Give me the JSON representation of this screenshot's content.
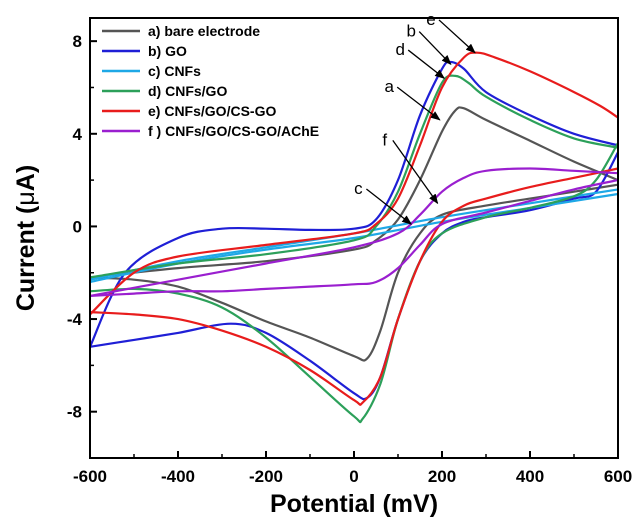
{
  "chart_data": {
    "type": "line",
    "xlabel": "Potential (mV)",
    "ylabel_prefix": "Current (",
    "ylabel_mu": "μ",
    "ylabel_suffix": "A)",
    "xlim": [
      -600,
      600
    ],
    "ylim": [
      -10,
      9
    ],
    "xticks": [
      -600,
      -400,
      -200,
      0,
      200,
      400,
      600
    ],
    "yticks": [
      -8,
      -4,
      0,
      4,
      8
    ],
    "grid": false,
    "legend_position": "top-left",
    "series": [
      {
        "name": "a) bare electrode",
        "label": "a",
        "color": "#555555",
        "forward": [
          [
            -600,
            -2.2
          ],
          [
            -400,
            -1.8
          ],
          [
            -200,
            -1.5
          ],
          [
            0,
            -1.0
          ],
          [
            50,
            -0.6
          ],
          [
            100,
            0.3
          ],
          [
            150,
            2.0
          ],
          [
            200,
            4.1
          ],
          [
            230,
            5.0
          ],
          [
            250,
            5.1
          ],
          [
            300,
            4.6
          ],
          [
            400,
            3.7
          ],
          [
            500,
            2.8
          ],
          [
            600,
            2.0
          ]
        ],
        "reverse": [
          [
            600,
            1.8
          ],
          [
            500,
            1.5
          ],
          [
            400,
            1.2
          ],
          [
            300,
            0.9
          ],
          [
            200,
            0.5
          ],
          [
            150,
            -0.3
          ],
          [
            100,
            -2.0
          ],
          [
            60,
            -4.5
          ],
          [
            30,
            -5.7
          ],
          [
            0,
            -5.6
          ],
          [
            -100,
            -4.8
          ],
          [
            -200,
            -4.1
          ],
          [
            -300,
            -3.3
          ],
          [
            -400,
            -2.6
          ],
          [
            -500,
            -2.3
          ],
          [
            -600,
            -2.2
          ]
        ]
      },
      {
        "name": "b) GO",
        "label": "b",
        "color": "#1f1fd6",
        "forward": [
          [
            -600,
            -5.2
          ],
          [
            -520,
            -2.0
          ],
          [
            -400,
            -0.5
          ],
          [
            -300,
            -0.1
          ],
          [
            -200,
            -0.1
          ],
          [
            -100,
            -0.15
          ],
          [
            0,
            -0.1
          ],
          [
            50,
            0.3
          ],
          [
            100,
            2.0
          ],
          [
            150,
            4.8
          ],
          [
            200,
            6.8
          ],
          [
            220,
            7.1
          ],
          [
            250,
            6.8
          ],
          [
            300,
            5.8
          ],
          [
            400,
            4.8
          ],
          [
            500,
            4.0
          ],
          [
            600,
            3.5
          ]
        ],
        "reverse": [
          [
            600,
            3.2
          ],
          [
            550,
            1.5
          ],
          [
            500,
            1.2
          ],
          [
            400,
            0.7
          ],
          [
            300,
            0.4
          ],
          [
            250,
            0.2
          ],
          [
            200,
            -0.3
          ],
          [
            150,
            -1.5
          ],
          [
            100,
            -4.0
          ],
          [
            60,
            -6.5
          ],
          [
            30,
            -7.4
          ],
          [
            0,
            -7.2
          ],
          [
            -100,
            -5.8
          ],
          [
            -200,
            -4.6
          ],
          [
            -280,
            -4.2
          ],
          [
            -400,
            -4.6
          ],
          [
            -500,
            -4.9
          ],
          [
            -600,
            -5.2
          ]
        ]
      },
      {
        "name": "c) CNFs",
        "label": "c",
        "color": "#1ea8e6",
        "forward": [
          [
            -600,
            -2.4
          ],
          [
            -400,
            -1.6
          ],
          [
            -200,
            -1.0
          ],
          [
            0,
            -0.5
          ],
          [
            200,
            0.2
          ],
          [
            400,
            0.8
          ],
          [
            600,
            1.4
          ]
        ],
        "reverse": [
          [
            600,
            1.6
          ],
          [
            400,
            1.0
          ],
          [
            200,
            0.4
          ],
          [
            0,
            -0.3
          ],
          [
            -200,
            -0.9
          ],
          [
            -400,
            -1.5
          ],
          [
            -600,
            -2.3
          ]
        ]
      },
      {
        "name": "d) CNFs/GO",
        "label": "d",
        "color": "#2ca05a",
        "forward": [
          [
            -600,
            -2.2
          ],
          [
            -400,
            -1.6
          ],
          [
            -200,
            -1.2
          ],
          [
            0,
            -0.6
          ],
          [
            50,
            0.0
          ],
          [
            100,
            1.5
          ],
          [
            150,
            4.0
          ],
          [
            200,
            6.2
          ],
          [
            230,
            6.5
          ],
          [
            260,
            6.2
          ],
          [
            300,
            5.6
          ],
          [
            400,
            4.6
          ],
          [
            500,
            3.8
          ],
          [
            600,
            3.4
          ]
        ],
        "reverse": [
          [
            600,
            3.6
          ],
          [
            550,
            2.0
          ],
          [
            500,
            1.3
          ],
          [
            400,
            0.8
          ],
          [
            300,
            0.4
          ],
          [
            200,
            -0.3
          ],
          [
            150,
            -1.5
          ],
          [
            100,
            -4.0
          ],
          [
            60,
            -6.8
          ],
          [
            20,
            -8.3
          ],
          [
            0,
            -8.2
          ],
          [
            -100,
            -6.5
          ],
          [
            -200,
            -4.8
          ],
          [
            -300,
            -3.5
          ],
          [
            -400,
            -2.9
          ],
          [
            -500,
            -2.7
          ],
          [
            -600,
            -2.8
          ]
        ]
      },
      {
        "name": "e) CNFs/GO/CS-GO",
        "label": "e",
        "color": "#e81c1c",
        "forward": [
          [
            -600,
            -3.8
          ],
          [
            -500,
            -2.0
          ],
          [
            -400,
            -1.3
          ],
          [
            -200,
            -0.8
          ],
          [
            0,
            -0.3
          ],
          [
            50,
            0.1
          ],
          [
            100,
            1.2
          ],
          [
            150,
            3.5
          ],
          [
            200,
            6.0
          ],
          [
            250,
            7.3
          ],
          [
            280,
            7.5
          ],
          [
            320,
            7.3
          ],
          [
            400,
            6.7
          ],
          [
            500,
            5.8
          ],
          [
            560,
            5.2
          ],
          [
            600,
            4.7
          ]
        ],
        "reverse": [
          [
            600,
            2.5
          ],
          [
            550,
            2.3
          ],
          [
            500,
            2.1
          ],
          [
            400,
            1.7
          ],
          [
            300,
            1.2
          ],
          [
            250,
            0.9
          ],
          [
            200,
            0.2
          ],
          [
            150,
            -1.5
          ],
          [
            100,
            -4.0
          ],
          [
            60,
            -6.5
          ],
          [
            20,
            -7.6
          ],
          [
            0,
            -7.5
          ],
          [
            -100,
            -6.2
          ],
          [
            -200,
            -5.2
          ],
          [
            -300,
            -4.5
          ],
          [
            -400,
            -4.0
          ],
          [
            -500,
            -3.8
          ],
          [
            -600,
            -3.7
          ]
        ]
      },
      {
        "name": "f ) CNFs/GO/CS-GO/AChE",
        "label": "f",
        "color": "#9a1fcf",
        "forward": [
          [
            -600,
            -3.0
          ],
          [
            -400,
            -2.3
          ],
          [
            -200,
            -1.6
          ],
          [
            0,
            -0.9
          ],
          [
            100,
            -0.3
          ],
          [
            150,
            0.5
          ],
          [
            200,
            1.5
          ],
          [
            250,
            2.1
          ],
          [
            300,
            2.4
          ],
          [
            400,
            2.5
          ],
          [
            500,
            2.4
          ],
          [
            600,
            2.3
          ]
        ],
        "reverse": [
          [
            600,
            2.0
          ],
          [
            500,
            1.6
          ],
          [
            400,
            1.1
          ],
          [
            300,
            0.6
          ],
          [
            200,
            0.1
          ],
          [
            150,
            -0.8
          ],
          [
            100,
            -1.8
          ],
          [
            50,
            -2.4
          ],
          [
            0,
            -2.5
          ],
          [
            -100,
            -2.6
          ],
          [
            -200,
            -2.7
          ],
          [
            -300,
            -2.8
          ],
          [
            -400,
            -2.8
          ],
          [
            -500,
            -2.9
          ],
          [
            -600,
            -3.0
          ]
        ]
      }
    ],
    "annotations": [
      {
        "text": "a",
        "label_x": 80,
        "label_y": 5.8,
        "tip_x": 195,
        "tip_y": 4.6
      },
      {
        "text": "b",
        "label_x": 130,
        "label_y": 8.2,
        "tip_x": 220,
        "tip_y": 7.0
      },
      {
        "text": "c",
        "label_x": 10,
        "label_y": 1.4,
        "tip_x": 130,
        "tip_y": 0.1
      },
      {
        "text": "d",
        "label_x": 105,
        "label_y": 7.4,
        "tip_x": 205,
        "tip_y": 6.4
      },
      {
        "text": "e",
        "label_x": 175,
        "label_y": 8.7,
        "tip_x": 275,
        "tip_y": 7.5
      },
      {
        "text": "f",
        "label_x": 70,
        "label_y": 3.5,
        "tip_x": 190,
        "tip_y": 1.0
      }
    ]
  }
}
